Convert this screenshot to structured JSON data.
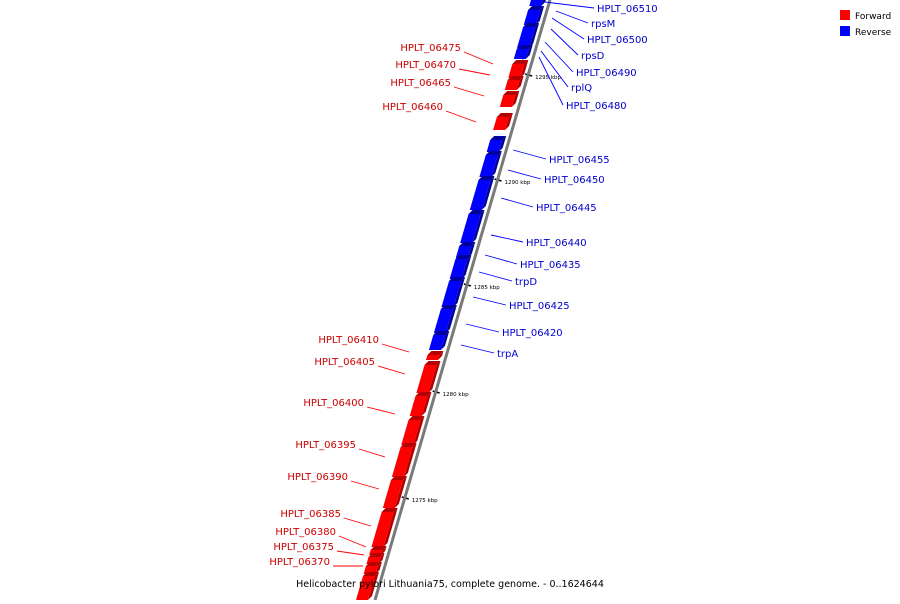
{
  "caption": "Helicobacter pylori Lithuania75, complete genome. - 0..1624644",
  "legend": [
    {
      "label": "Forward",
      "color": "#ff0000"
    },
    {
      "label": "Reverse",
      "color": "#0000ff"
    }
  ],
  "colors": {
    "forward": "#ff0000",
    "forward_dark": "#b40000",
    "reverse": "#0000ff",
    "reverse_dark": "#00009a",
    "backbone": "#7a7a7a",
    "forward_text": "#cc0000",
    "reverse_text": "#0000cc"
  },
  "ticks": [
    {
      "label": "1295 kbp"
    },
    {
      "label": "1290 kbp"
    },
    {
      "label": "1285 kbp"
    },
    {
      "label": "1280 kbp"
    },
    {
      "label": "1275 kbp"
    }
  ],
  "genes": [
    {
      "name": "HPLT_06510",
      "strand": "reverse"
    },
    {
      "name": "rpsM",
      "strand": "reverse"
    },
    {
      "name": "HPLT_06500",
      "strand": "reverse"
    },
    {
      "name": "rpsD",
      "strand": "reverse"
    },
    {
      "name": "HPLT_06490",
      "strand": "reverse"
    },
    {
      "name": "rplQ",
      "strand": "reverse"
    },
    {
      "name": "HPLT_06480",
      "strand": "reverse"
    },
    {
      "name": "HPLT_06475",
      "strand": "forward"
    },
    {
      "name": "HPLT_06470",
      "strand": "forward"
    },
    {
      "name": "HPLT_06465",
      "strand": "forward"
    },
    {
      "name": "HPLT_06460",
      "strand": "forward"
    },
    {
      "name": "HPLT_06455",
      "strand": "reverse"
    },
    {
      "name": "HPLT_06450",
      "strand": "reverse"
    },
    {
      "name": "HPLT_06445",
      "strand": "reverse"
    },
    {
      "name": "HPLT_06440",
      "strand": "reverse"
    },
    {
      "name": "HPLT_06435",
      "strand": "reverse"
    },
    {
      "name": "trpD",
      "strand": "reverse"
    },
    {
      "name": "HPLT_06425",
      "strand": "reverse"
    },
    {
      "name": "HPLT_06420",
      "strand": "reverse"
    },
    {
      "name": "trpA",
      "strand": "reverse"
    },
    {
      "name": "HPLT_06410",
      "strand": "forward"
    },
    {
      "name": "HPLT_06405",
      "strand": "forward"
    },
    {
      "name": "HPLT_06400",
      "strand": "forward"
    },
    {
      "name": "HPLT_06395",
      "strand": "forward"
    },
    {
      "name": "HPLT_06390",
      "strand": "forward"
    },
    {
      "name": "HPLT_06385",
      "strand": "forward"
    },
    {
      "name": "HPLT_06380",
      "strand": "forward"
    },
    {
      "name": "HPLT_06375",
      "strand": "forward"
    },
    {
      "name": "HPLT_06370",
      "strand": "forward"
    }
  ]
}
